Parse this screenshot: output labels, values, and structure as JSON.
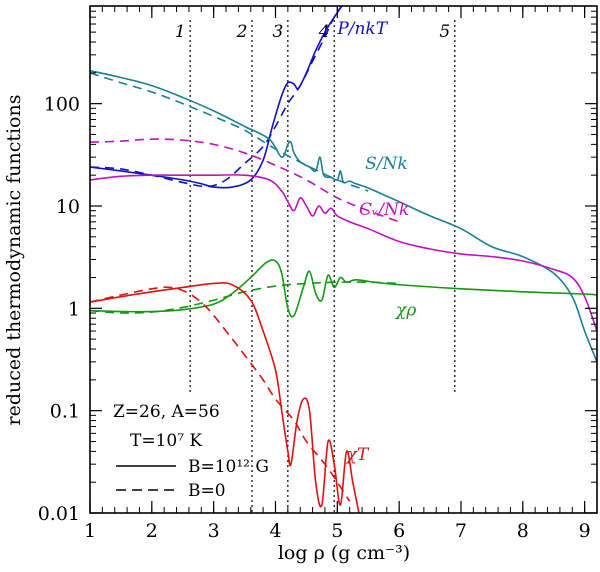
{
  "chart_data": {
    "type": "line",
    "xlabel": "log ρ (g cm⁻³)",
    "ylabel": "reduced thermodynamic functions",
    "xscale": "linear",
    "yscale": "log",
    "xlim": [
      1,
      9.2
    ],
    "ylim": [
      0.01,
      900
    ],
    "x_ticks": [
      1,
      2,
      3,
      4,
      5,
      6,
      7,
      8,
      9
    ],
    "x_tick_labels": [
      "1",
      "2",
      "3",
      "4",
      "5",
      "6",
      "7",
      "8",
      "9"
    ],
    "y_ticks": [
      0.01,
      0.1,
      1,
      10,
      100
    ],
    "y_tick_labels": [
      "0.01",
      "0.1",
      "1",
      "10",
      "100"
    ],
    "region_boundaries": [
      {
        "x": 2.62,
        "label": "1"
      },
      {
        "x": 3.62,
        "label": "2"
      },
      {
        "x": 4.2,
        "label": "3"
      },
      {
        "x": 4.95,
        "label": "4"
      },
      {
        "x": 6.9,
        "label": "5"
      }
    ],
    "annotations": [
      {
        "id": "composition",
        "text": "Z=26, A=56"
      },
      {
        "id": "temperature",
        "text": "T=10⁷ K"
      }
    ],
    "legend": [
      {
        "style": "solid",
        "label": "B=10¹² G"
      },
      {
        "style": "dashed",
        "label": "B=0"
      }
    ],
    "series": [
      {
        "name": "P/nkT",
        "color": "#1010c8",
        "style": "solid",
        "points": [
          [
            1,
            24
          ],
          [
            1.5,
            22
          ],
          [
            2,
            20
          ],
          [
            2.5,
            18
          ],
          [
            2.8,
            16.5
          ],
          [
            3.0,
            15.3
          ],
          [
            3.3,
            15.3
          ],
          [
            3.6,
            18
          ],
          [
            3.8,
            28
          ],
          [
            3.95,
            60
          ],
          [
            4.1,
            120
          ],
          [
            4.2,
            160
          ],
          [
            4.3,
            155
          ],
          [
            4.35,
            140
          ],
          [
            4.4,
            150
          ],
          [
            4.5,
            200
          ],
          [
            4.65,
            330
          ],
          [
            4.8,
            500
          ],
          [
            4.95,
            700
          ],
          [
            5.1,
            950
          ]
        ]
      },
      {
        "name": "P/nkT",
        "color": "#1010c8",
        "style": "dashed",
        "points": [
          [
            1,
            24
          ],
          [
            1.5,
            23
          ],
          [
            2,
            20
          ],
          [
            2.5,
            17
          ],
          [
            2.9,
            15.5
          ],
          [
            3.2,
            18
          ],
          [
            3.5,
            26
          ],
          [
            3.8,
            38
          ],
          [
            4.0,
            60
          ],
          [
            4.2,
            100
          ],
          [
            4.4,
            150
          ],
          [
            4.6,
            260
          ],
          [
            4.8,
            450
          ],
          [
            4.95,
            700
          ],
          [
            5.1,
            950
          ]
        ]
      },
      {
        "name": "S/Nk",
        "color": "#1a7f95",
        "style": "solid",
        "points": [
          [
            1,
            210
          ],
          [
            1.5,
            180
          ],
          [
            2,
            150
          ],
          [
            2.5,
            115
          ],
          [
            3.0,
            85
          ],
          [
            3.5,
            60
          ],
          [
            3.9,
            45
          ],
          [
            4.1,
            30
          ],
          [
            4.2,
            40
          ],
          [
            4.25,
            42
          ],
          [
            4.3,
            33
          ],
          [
            4.4,
            27
          ],
          [
            4.55,
            24
          ],
          [
            4.65,
            22
          ],
          [
            4.72,
            30
          ],
          [
            4.78,
            20
          ],
          [
            4.9,
            19
          ],
          [
            5.0,
            18
          ],
          [
            5.05,
            22
          ],
          [
            5.1,
            17
          ],
          [
            5.2,
            17.5
          ],
          [
            5.3,
            16.5
          ],
          [
            5.5,
            15
          ],
          [
            6.0,
            11
          ],
          [
            6.5,
            8
          ],
          [
            7.0,
            6
          ],
          [
            7.5,
            4
          ],
          [
            8.0,
            3.2
          ],
          [
            8.5,
            2.2
          ],
          [
            8.8,
            1.3
          ],
          [
            9.0,
            0.6
          ],
          [
            9.2,
            0.3
          ]
        ]
      },
      {
        "name": "S/Nk",
        "color": "#1a7f95",
        "style": "dashed",
        "points": [
          [
            1,
            200
          ],
          [
            1.5,
            160
          ],
          [
            2,
            130
          ],
          [
            2.5,
            100
          ],
          [
            3.0,
            75
          ],
          [
            3.5,
            55
          ],
          [
            4.0,
            36
          ],
          [
            4.5,
            25
          ],
          [
            5.0,
            18
          ],
          [
            5.5,
            14
          ]
        ]
      },
      {
        "name": "Cv/Nk",
        "color": "#c010c0",
        "style": "solid",
        "points": [
          [
            1,
            18
          ],
          [
            1.5,
            19.5
          ],
          [
            2,
            20
          ],
          [
            2.5,
            20
          ],
          [
            3.0,
            20
          ],
          [
            3.5,
            20
          ],
          [
            3.9,
            18
          ],
          [
            4.1,
            14
          ],
          [
            4.2,
            11
          ],
          [
            4.3,
            9
          ],
          [
            4.4,
            12
          ],
          [
            4.5,
            10
          ],
          [
            4.6,
            8
          ],
          [
            4.7,
            10
          ],
          [
            4.8,
            8.5
          ],
          [
            4.9,
            9.5
          ],
          [
            5.0,
            8
          ],
          [
            5.2,
            7
          ],
          [
            5.5,
            6
          ],
          [
            6.0,
            4.5
          ],
          [
            6.5,
            3.8
          ],
          [
            7.0,
            3.4
          ],
          [
            7.5,
            3.2
          ],
          [
            8.0,
            2.9
          ],
          [
            8.5,
            2.4
          ],
          [
            8.8,
            2.0
          ],
          [
            9.0,
            1.3
          ],
          [
            9.2,
            0.6
          ]
        ]
      },
      {
        "name": "Cv/Nk",
        "color": "#c010c0",
        "style": "dashed",
        "points": [
          [
            1,
            42
          ],
          [
            1.5,
            43
          ],
          [
            2,
            45
          ],
          [
            2.5,
            44
          ],
          [
            3.0,
            40
          ],
          [
            3.5,
            33
          ],
          [
            4.0,
            25
          ],
          [
            4.5,
            18
          ],
          [
            5.0,
            12
          ],
          [
            5.5,
            9
          ],
          [
            6.0,
            7
          ]
        ]
      },
      {
        "name": "χρ",
        "color": "#119911",
        "style": "solid",
        "points": [
          [
            1,
            0.95
          ],
          [
            1.5,
            0.93
          ],
          [
            2,
            0.93
          ],
          [
            2.5,
            0.97
          ],
          [
            3.0,
            1.1
          ],
          [
            3.3,
            1.4
          ],
          [
            3.6,
            2.0
          ],
          [
            3.85,
            2.8
          ],
          [
            4.0,
            2.9
          ],
          [
            4.1,
            2.2
          ],
          [
            4.2,
            1.0
          ],
          [
            4.3,
            0.85
          ],
          [
            4.45,
            1.6
          ],
          [
            4.55,
            2.3
          ],
          [
            4.65,
            1.4
          ],
          [
            4.75,
            1.2
          ],
          [
            4.85,
            2.1
          ],
          [
            4.95,
            1.6
          ],
          [
            5.05,
            2.0
          ],
          [
            5.15,
            1.8
          ],
          [
            5.3,
            1.9
          ],
          [
            5.6,
            1.8
          ],
          [
            6.0,
            1.7
          ],
          [
            7.0,
            1.55
          ],
          [
            8.0,
            1.45
          ],
          [
            9.0,
            1.38
          ],
          [
            9.2,
            1.35
          ]
        ]
      },
      {
        "name": "χρ",
        "color": "#119911",
        "style": "dashed",
        "points": [
          [
            1,
            0.95
          ],
          [
            1.5,
            0.9
          ],
          [
            2,
            0.92
          ],
          [
            2.5,
            1.02
          ],
          [
            3.0,
            1.2
          ],
          [
            3.5,
            1.45
          ],
          [
            4.0,
            1.65
          ],
          [
            4.5,
            1.75
          ],
          [
            5.0,
            1.8
          ],
          [
            5.5,
            1.8
          ],
          [
            6.0,
            1.75
          ]
        ]
      },
      {
        "name": "χT",
        "color": "#e01010",
        "style": "solid",
        "points": [
          [
            1,
            1.15
          ],
          [
            1.5,
            1.3
          ],
          [
            2,
            1.45
          ],
          [
            2.5,
            1.6
          ],
          [
            3.0,
            1.75
          ],
          [
            3.3,
            1.7
          ],
          [
            3.6,
            1.2
          ],
          [
            3.8,
            0.6
          ],
          [
            4.0,
            0.25
          ],
          [
            4.1,
            0.1
          ],
          [
            4.2,
            0.04
          ],
          [
            4.25,
            0.03
          ],
          [
            4.35,
            0.08
          ],
          [
            4.45,
            0.13
          ],
          [
            4.55,
            0.1
          ],
          [
            4.65,
            0.02
          ],
          [
            4.75,
            0.012
          ],
          [
            4.85,
            0.05
          ],
          [
            4.95,
            0.03
          ],
          [
            5.05,
            0.012
          ],
          [
            5.15,
            0.04
          ],
          [
            5.25,
            0.02
          ],
          [
            5.35,
            0.01
          ]
        ]
      },
      {
        "name": "χT",
        "color": "#e01010",
        "style": "dashed",
        "points": [
          [
            1,
            1.15
          ],
          [
            1.5,
            1.35
          ],
          [
            2,
            1.55
          ],
          [
            2.3,
            1.6
          ],
          [
            2.6,
            1.4
          ],
          [
            2.9,
            1.0
          ],
          [
            3.2,
            0.6
          ],
          [
            3.5,
            0.35
          ],
          [
            3.8,
            0.2
          ],
          [
            4.0,
            0.13
          ],
          [
            4.3,
            0.08
          ],
          [
            4.5,
            0.05
          ],
          [
            4.8,
            0.03
          ],
          [
            5.0,
            0.02
          ],
          [
            5.2,
            0.013
          ]
        ]
      }
    ],
    "series_labels": [
      {
        "series": "P/nkT",
        "text": "P/nkT",
        "x": 5.0,
        "y": 480
      },
      {
        "series": "S/Nk",
        "text": "S/Nk",
        "x": 5.45,
        "y": 23
      },
      {
        "series": "Cv/Nk",
        "text": "Cᵥ/Nk",
        "x": 5.35,
        "y": 8.2
      },
      {
        "series": "χρ",
        "text": "χρ",
        "x": 5.95,
        "y": 0.85
      },
      {
        "series": "χT",
        "text": "χT",
        "x": 5.15,
        "y": 0.033
      }
    ]
  }
}
